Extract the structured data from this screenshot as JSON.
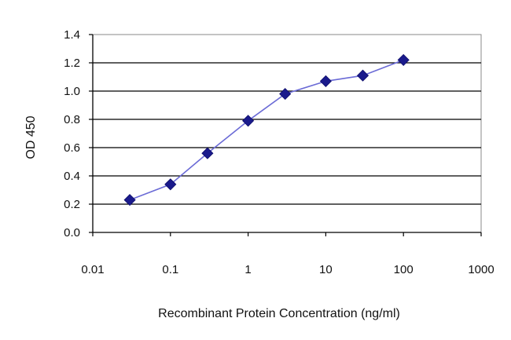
{
  "chart_data": {
    "type": "line",
    "title": "",
    "xlabel": "Recombinant Protein Concentration (ng/ml)",
    "ylabel": "OD 450",
    "xscale": "log",
    "xlim": [
      0.01,
      1000
    ],
    "ylim": [
      0.0,
      1.4
    ],
    "x_ticks": [
      "0.01",
      "0.1",
      "1",
      "10",
      "100",
      "1000"
    ],
    "x_tick_values": [
      0.01,
      0.1,
      1,
      10,
      100,
      1000
    ],
    "y_ticks": [
      "0.0",
      "0.2",
      "0.4",
      "0.6",
      "0.8",
      "1.0",
      "1.2",
      "1.4"
    ],
    "y_tick_values": [
      0.0,
      0.2,
      0.4,
      0.6,
      0.8,
      1.0,
      1.2,
      1.4
    ],
    "grid": "horizontal",
    "legend": "none",
    "series": [
      {
        "x": [
          0.03,
          0.1,
          0.3,
          1,
          3,
          10,
          30,
          100
        ],
        "y": [
          0.23,
          0.34,
          0.56,
          0.79,
          0.98,
          1.07,
          1.11,
          1.22
        ],
        "line_color": "#6b6bd6",
        "marker": "diamond",
        "marker_color": "#1a1a8c"
      }
    ]
  }
}
